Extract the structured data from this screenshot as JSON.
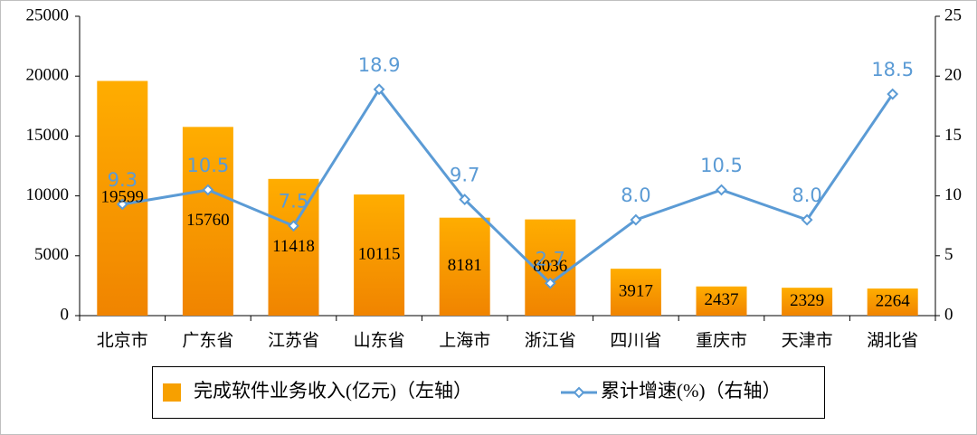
{
  "chart_data": {
    "type": "bar-line",
    "categories": [
      "北京市",
      "广东省",
      "江苏省",
      "山东省",
      "上海市",
      "浙江省",
      "四川省",
      "重庆市",
      "天津市",
      "湖北省"
    ],
    "series": [
      {
        "name": "完成软件业务收入(亿元)（左轴）",
        "type": "bar",
        "color": "#f7a000",
        "values": [
          19599,
          15760,
          11418,
          10115,
          8181,
          8036,
          3917,
          2437,
          2329,
          2264
        ]
      },
      {
        "name": "累计增速(%)（右轴）",
        "type": "line",
        "axis": "y2",
        "color": "#5b9bd5",
        "values": [
          9.3,
          10.5,
          7.5,
          18.9,
          9.7,
          2.7,
          8.0,
          10.5,
          8.0,
          18.5
        ],
        "value_labels": [
          "9.3",
          "10.5",
          "7.5",
          "18.9",
          "9.7",
          "2.7",
          "8.0",
          "10.5",
          "8.0",
          "18.5"
        ]
      }
    ],
    "ylim": [
      0,
      25000
    ],
    "yticks": [
      0,
      5000,
      10000,
      15000,
      20000,
      25000
    ],
    "y2lim": [
      0,
      25
    ],
    "y2ticks": [
      0,
      5,
      10,
      15,
      20,
      25
    ],
    "legend": "bottom"
  }
}
